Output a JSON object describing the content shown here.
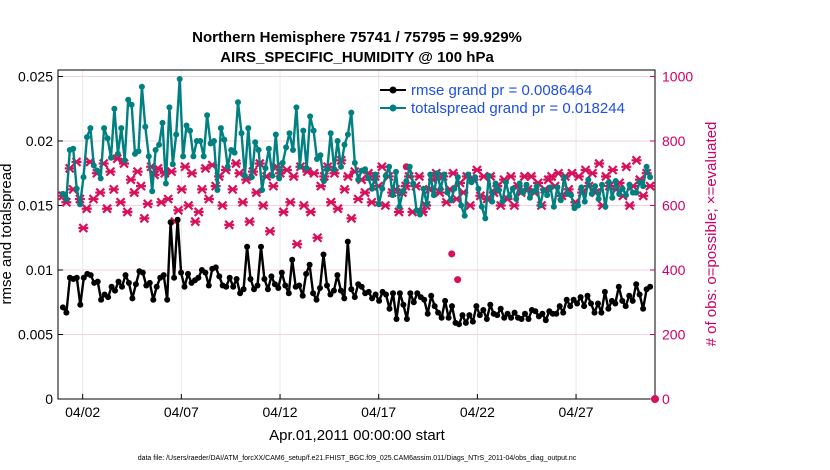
{
  "chart_data": {
    "type": "line",
    "title_line1": "Northern Hemisphere 75741 / 75795 = 99.929%",
    "title_line2": "AIRS_SPECIFIC_HUMIDITY @ 100 hPa",
    "xlabel": "Apr.01,2011 00:00:00 start",
    "ylabel": "rmse and totalspread",
    "y2label": "# of obs: o=possible; ×=evaluated",
    "footnote": "data file: /Users/raeder/DAI/ATM_forcXX/CAM6_setup/f.e21.FHIST_BGC.f09_025.CAM6assim.011/Diags_NTrS_2011-04/obs_diag_output.nc",
    "xlim": [
      0.75,
      31.0
    ],
    "ylim": [
      0,
      0.0255
    ],
    "y2lim": [
      0,
      1020
    ],
    "x_ticks": [
      2,
      7,
      12,
      17,
      22,
      27
    ],
    "x_tick_labels": [
      "04/02",
      "04/07",
      "04/12",
      "04/17",
      "04/22",
      "04/27"
    ],
    "y_ticks": [
      0,
      0.005,
      0.01,
      0.015,
      0.02,
      0.025
    ],
    "y_tick_labels": [
      "0",
      "0.005",
      "0.01",
      "0.015",
      "0.02",
      "0.025"
    ],
    "y2_ticks": [
      0,
      200,
      400,
      600,
      800,
      1000
    ],
    "y2_tick_labels": [
      "0",
      "200",
      "400",
      "600",
      "800",
      "1000"
    ],
    "grid": true,
    "legend_position": "top-right",
    "series": [
      {
        "name": "rmse grand pr = 0.0086464",
        "color": "#000000",
        "axis": "left",
        "values": [
          0.0071,
          0.0067,
          0.0094,
          0.0093,
          0.0094,
          0.0073,
          0.0094,
          0.0097,
          0.0096,
          0.009,
          0.0091,
          0.0077,
          0.0081,
          0.0079,
          0.0087,
          0.0084,
          0.0091,
          0.0087,
          0.0096,
          0.009,
          0.0078,
          0.0089,
          0.0099,
          0.0098,
          0.0088,
          0.009,
          0.0077,
          0.0087,
          0.0094,
          0.0096,
          0.0077,
          0.0137,
          0.0094,
          0.0139,
          0.0098,
          0.0087,
          0.0097,
          0.009,
          0.0092,
          0.0094,
          0.01,
          0.0098,
          0.0088,
          0.0101,
          0.0102,
          0.0095,
          0.0088,
          0.0087,
          0.0094,
          0.0087,
          0.0093,
          0.0082,
          0.0085,
          0.0118,
          0.0093,
          0.0085,
          0.0088,
          0.0118,
          0.0093,
          0.0085,
          0.0095,
          0.0089,
          0.0086,
          0.0098,
          0.0088,
          0.0082,
          0.0108,
          0.0087,
          0.0088,
          0.008,
          0.0097,
          0.0104,
          0.0082,
          0.0077,
          0.0086,
          0.0112,
          0.0088,
          0.0081,
          0.0084,
          0.0096,
          0.0084,
          0.0078,
          0.0122,
          0.0085,
          0.0079,
          0.0089,
          0.0087,
          0.0082,
          0.0083,
          0.0078,
          0.0081,
          0.0076,
          0.0083,
          0.0081,
          0.007,
          0.0082,
          0.0062,
          0.0082,
          0.0073,
          0.0062,
          0.0082,
          0.0075,
          0.0082,
          0.0079,
          0.0077,
          0.0066,
          0.008,
          0.0072,
          0.0067,
          0.0063,
          0.0076,
          0.0063,
          0.0072,
          0.0059,
          0.0058,
          0.0065,
          0.0059,
          0.0065,
          0.006,
          0.0072,
          0.0065,
          0.0069,
          0.0062,
          0.0073,
          0.0066,
          0.0065,
          0.007,
          0.0063,
          0.0066,
          0.0063,
          0.0067,
          0.0063,
          0.0062,
          0.0066,
          0.0062,
          0.0069,
          0.0068,
          0.0064,
          0.0066,
          0.0061,
          0.0068,
          0.0066,
          0.0066,
          0.0072,
          0.0067,
          0.0077,
          0.0072,
          0.0077,
          0.0074,
          0.0079,
          0.0072,
          0.008,
          0.0074,
          0.0067,
          0.0074,
          0.0067,
          0.0083,
          0.007,
          0.0076,
          0.0074,
          0.0087,
          0.0076,
          0.0072,
          0.008,
          0.0076,
          0.0089,
          0.0081,
          0.007,
          0.0085,
          0.0087
        ]
      },
      {
        "name": "totalspread grand pr = 0.018244",
        "color": "#008080",
        "axis": "left",
        "values": [
          0.0159,
          0.0155,
          0.0193,
          0.0194,
          0.0163,
          0.0151,
          0.0172,
          0.0203,
          0.021,
          0.0181,
          0.0177,
          0.0171,
          0.021,
          0.0202,
          0.0187,
          0.0225,
          0.019,
          0.021,
          0.0185,
          0.0232,
          0.0228,
          0.019,
          0.0192,
          0.0242,
          0.0211,
          0.0188,
          0.0161,
          0.0193,
          0.0197,
          0.0214,
          0.0167,
          0.0226,
          0.0182,
          0.0205,
          0.0248,
          0.0188,
          0.0212,
          0.0208,
          0.0188,
          0.02,
          0.02,
          0.0188,
          0.022,
          0.0198,
          0.02,
          0.0162,
          0.021,
          0.0201,
          0.018,
          0.0193,
          0.0191,
          0.023,
          0.0206,
          0.0173,
          0.021,
          0.0172,
          0.0199,
          0.0193,
          0.0162,
          0.0179,
          0.0194,
          0.0173,
          0.0205,
          0.0171,
          0.0183,
          0.0195,
          0.0206,
          0.0193,
          0.0226,
          0.018,
          0.0208,
          0.0179,
          0.0219,
          0.0208,
          0.0186,
          0.0189,
          0.0169,
          0.0178,
          0.0206,
          0.0178,
          0.02,
          0.018,
          0.0197,
          0.0205,
          0.0222,
          0.0183,
          0.017,
          0.0177,
          0.0178,
          0.0171,
          0.0163,
          0.0174,
          0.0151,
          0.0163,
          0.0173,
          0.018,
          0.0158,
          0.0176,
          0.0149,
          0.0161,
          0.0169,
          0.018,
          0.0167,
          0.0146,
          0.0143,
          0.0163,
          0.0151,
          0.0174,
          0.0158,
          0.0175,
          0.0163,
          0.0174,
          0.016,
          0.0154,
          0.0163,
          0.0172,
          0.015,
          0.0142,
          0.0174,
          0.0168,
          0.0172,
          0.0163,
          0.0149,
          0.014,
          0.0173,
          0.0153,
          0.0167,
          0.0162,
          0.0153,
          0.0168,
          0.0157,
          0.0163,
          0.0155,
          0.0167,
          0.016,
          0.0166,
          0.0156,
          0.0161,
          0.0165,
          0.015,
          0.0162,
          0.0158,
          0.0164,
          0.0149,
          0.0164,
          0.0154,
          0.0172,
          0.0159,
          0.0158,
          0.0148,
          0.015,
          0.0164,
          0.0153,
          0.017,
          0.0159,
          0.0165,
          0.0155,
          0.0166,
          0.0149,
          0.0168,
          0.0156,
          0.0169,
          0.0159,
          0.0163,
          0.0158,
          0.0166,
          0.016,
          0.016,
          0.0168,
          0.0165,
          0.018,
          0.0172
        ]
      },
      {
        "name": "# of obs evaluated",
        "color": "#d6105a",
        "axis": "right",
        "marker": "star",
        "values": [
          630,
          610,
          715,
          650,
          735,
          620,
          530,
          590,
          735,
          620,
          700,
          640,
          730,
          590,
          705,
          650,
          745,
          610,
          730,
          580,
          680,
          640,
          705,
          660,
          560,
          605,
          720,
          695,
          715,
          610,
          700,
          620,
          705,
          550,
          585,
          650,
          720,
          600,
          700,
          550,
          580,
          650,
          715,
          620,
          725,
          660,
          690,
          600,
          710,
          540,
          650,
          730,
          700,
          610,
          680,
          550,
          705,
          640,
          730,
          600,
          690,
          520,
          660,
          720,
          700,
          580,
          710,
          610,
          690,
          480,
          720,
          600,
          705,
          580,
          700,
          500,
          660,
          690,
          720,
          610,
          700,
          590,
          740,
          650,
          690,
          560,
          705,
          620,
          680,
          640,
          700,
          610,
          690,
          660,
          720,
          600,
          690,
          640,
          650,
          580,
          640,
          660,
          690,
          580,
          660,
          690,
          580,
          600,
          650,
          680,
          700,
          640,
          690,
          610,
          650,
          700,
          620,
          670,
          640,
          690,
          600,
          680,
          710,
          630,
          690,
          620,
          690,
          640,
          660,
          600,
          680,
          620,
          690,
          600,
          660,
          640,
          690,
          650,
          690,
          640,
          670,
          600,
          650,
          680,
          690,
          660,
          700,
          630,
          690,
          650,
          700,
          610,
          690,
          640,
          710,
          660,
          700,
          640,
          730,
          600,
          690,
          660,
          710,
          650,
          670,
          630,
          720,
          600,
          660,
          740,
          680,
          630,
          700,
          660
        ]
      },
      {
        "name": "# of obs possible",
        "color": "#d6105a",
        "axis": "right",
        "marker": "circle",
        "values": [
          0
        ]
      }
    ],
    "outlier_points": [
      {
        "x": 20.7,
        "y2": 450
      },
      {
        "x": 21.0,
        "y2": 370
      },
      {
        "x": 18.4,
        "y2": 720
      }
    ]
  }
}
